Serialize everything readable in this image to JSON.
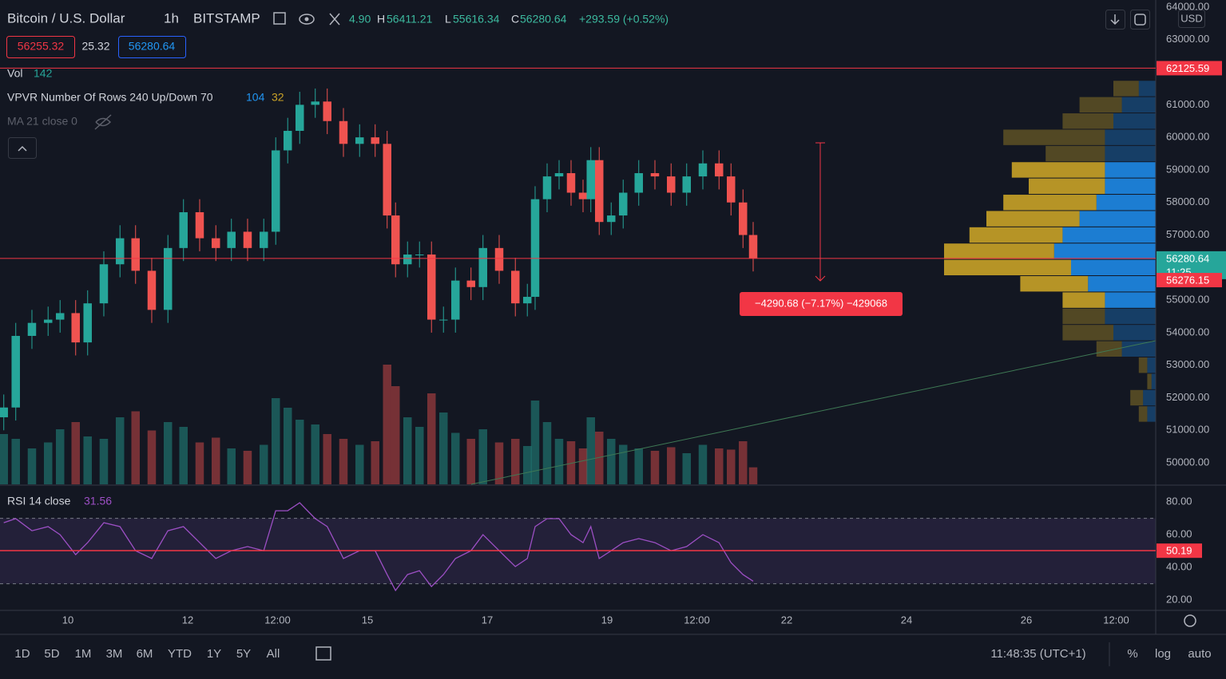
{
  "header": {
    "symbol": "Bitcoin / U.S. Dollar",
    "interval": "1h",
    "exchange": "BITSTAMP",
    "open_fragment": "4.90",
    "ohlc_labels": [
      "H",
      "L",
      "C"
    ],
    "high": 56411.21,
    "low": 55616.34,
    "close": 56280.64,
    "change": "+293.59 (+0.52%)",
    "sell": 56255.32,
    "spread": 25.32,
    "buy": 56280.64,
    "currency": "USD"
  },
  "legends": {
    "vol": "Vol",
    "vol_value": 142,
    "vpvr": "VPVR Number Of Rows 240 Up/Down 70",
    "vpvr_up": 104,
    "vpvr_down": 32,
    "ma": "MA 21 close 0",
    "rsi": "RSI 14 close",
    "rsi_value": 31.56
  },
  "measure": "−4290.68 (−7.17%) −429068",
  "toolbar": {
    "ranges": [
      "1D",
      "5D",
      "1M",
      "3M",
      "6M",
      "YTD",
      "1Y",
      "5Y",
      "All"
    ],
    "clock": "11:48:35 (UTC+1)",
    "percent": "%",
    "log": "log",
    "auto": "auto"
  },
  "chart_data": [
    {
      "type": "candlestick",
      "x": [
        8.93,
        9.13,
        9.4,
        9.67,
        9.87,
        10.13,
        10.33,
        10.6,
        10.87,
        11.13,
        11.4,
        11.67,
        11.93,
        12.2,
        12.47,
        12.73,
        13.0,
        13.27,
        13.47,
        13.67,
        13.87,
        14.13,
        14.33,
        14.6,
        14.87,
        15.13,
        15.33,
        15.47,
        15.67,
        15.87,
        16.07,
        16.27,
        16.47,
        16.73,
        16.93,
        17.2,
        17.47,
        17.67,
        17.8,
        18.0,
        18.2,
        18.4,
        18.6,
        18.73,
        18.87,
        19.07,
        19.27,
        19.53,
        19.8,
        20.07,
        20.33,
        20.6,
        20.87,
        21.07,
        21.27,
        21.44
      ],
      "open": [
        51400,
        51700,
        53900,
        54300,
        54400,
        54600,
        53700,
        54900,
        56100,
        56900,
        55900,
        54700,
        56600,
        57700,
        56900,
        56600,
        57100,
        56600,
        57100,
        59600,
        60200,
        61000,
        61100,
        60500,
        59800,
        60000,
        59800,
        57600,
        56100,
        56400,
        56400,
        54400,
        54400,
        55600,
        55400,
        56600,
        55900,
        54900,
        55100,
        58100,
        58800,
        58900,
        58300,
        58100,
        59300,
        57400,
        57600,
        58300,
        58900,
        58800,
        58300,
        58800,
        59200,
        58800,
        58000,
        57000
      ],
      "high": [
        52100,
        54300,
        54700,
        54800,
        55000,
        55000,
        55300,
        56500,
        57300,
        57300,
        56300,
        57000,
        58100,
        58100,
        57300,
        57500,
        57500,
        57500,
        60000,
        60600,
        61400,
        61500,
        61500,
        60900,
        60400,
        60400,
        60200,
        58000,
        56800,
        56800,
        56800,
        54800,
        56000,
        56000,
        57000,
        57000,
        56300,
        55500,
        58500,
        59200,
        59300,
        59300,
        58700,
        59700,
        59700,
        58000,
        58700,
        59300,
        59300,
        59200,
        59200,
        59600,
        59600,
        59200,
        58400,
        57400
      ],
      "low": [
        51000,
        51300,
        53500,
        53900,
        54000,
        53300,
        53300,
        54500,
        55700,
        55500,
        54300,
        54300,
        56200,
        56500,
        56200,
        56200,
        56200,
        56200,
        56700,
        59200,
        59800,
        60600,
        60100,
        59400,
        59400,
        59400,
        57200,
        55700,
        55700,
        56000,
        54000,
        54000,
        54000,
        55000,
        55000,
        55500,
        54500,
        54500,
        54700,
        57700,
        58400,
        57900,
        57700,
        57700,
        57000,
        57000,
        57200,
        57900,
        58400,
        57900,
        57900,
        58400,
        58400,
        57600,
        56600,
        55880
      ],
      "close": [
        51700,
        53900,
        54300,
        54400,
        54600,
        53700,
        54900,
        56100,
        56900,
        55900,
        54700,
        56600,
        57700,
        56900,
        56600,
        57100,
        56600,
        57100,
        59600,
        60200,
        61000,
        61100,
        60500,
        59800,
        60000,
        59800,
        57600,
        56100,
        56400,
        56400,
        54400,
        54400,
        55600,
        55400,
        56600,
        55900,
        54900,
        55100,
        58100,
        58800,
        58900,
        58300,
        58100,
        59300,
        57400,
        57600,
        58300,
        58900,
        58800,
        58300,
        58800,
        59200,
        58800,
        58000,
        57000,
        56280
      ],
      "volume": [
        420,
        380,
        300,
        350,
        460,
        520,
        400,
        380,
        560,
        610,
        450,
        520,
        480,
        350,
        390,
        300,
        280,
        330,
        720,
        640,
        540,
        500,
        420,
        380,
        330,
        360,
        1000,
        820,
        560,
        480,
        760,
        600,
        430,
        380,
        460,
        350,
        380,
        320,
        700,
        520,
        380,
        360,
        300,
        560,
        440,
        380,
        330,
        300,
        280,
        310,
        260,
        330,
        300,
        290,
        360,
        142
      ],
      "up_color": "#26a69a",
      "down_color": "#ef5350",
      "xlim": [
        8.867,
        28.16
      ],
      "xticks": [
        10,
        12,
        {
          "value": 13.5,
          "label": "12:00"
        },
        15,
        17,
        19,
        {
          "value": 20.5,
          "label": "12:00"
        },
        22,
        24,
        26,
        {
          "value": 27.5,
          "label": "12:00"
        }
      ],
      "ylim": [
        49340,
        64220
      ],
      "yticks": [
        {
          "value": 50000,
          "label": "50000.00"
        },
        {
          "value": 51000,
          "label": "51000.00"
        },
        {
          "value": 52000,
          "label": "52000.00"
        },
        {
          "value": 53000,
          "label": "53000.00"
        },
        {
          "value": 54000,
          "label": "54000.00"
        },
        {
          "value": 55000,
          "label": "55000.00"
        },
        {
          "value": 57000,
          "label": "57000.00"
        },
        {
          "value": 58000,
          "label": "58000.00"
        },
        {
          "value": 59000,
          "label": "59000.00"
        },
        {
          "value": 60000,
          "label": "60000.00"
        },
        {
          "value": 61000,
          "label": "61000.00"
        },
        {
          "value": 63000,
          "label": "63000.00"
        },
        {
          "value": 64000,
          "label": "64000.00"
        }
      ],
      "hline": {
        "value": 62125.59,
        "color": "#f23645"
      },
      "last_price": {
        "value": 56280.64,
        "countdown": "11:25",
        "color": "#26a69a"
      },
      "bid_price": {
        "value": 56276.15,
        "color": "#f23645"
      },
      "volume_profile": {
        "value_area": [
          54700,
          59300
        ],
        "up_color": "#1e88e5",
        "down_color": "#c9a227",
        "rows": [
          {
            "price": 61500,
            "up": 20,
            "down": 30
          },
          {
            "price": 61000,
            "up": 40,
            "down": 50
          },
          {
            "price": 60500,
            "up": 50,
            "down": 60
          },
          {
            "price": 60000,
            "up": 60,
            "down": 120
          },
          {
            "price": 59500,
            "up": 60,
            "down": 70
          },
          {
            "price": 59000,
            "up": 60,
            "down": 110
          },
          {
            "price": 58500,
            "up": 60,
            "down": 90
          },
          {
            "price": 58000,
            "up": 70,
            "down": 110
          },
          {
            "price": 57500,
            "up": 90,
            "down": 110
          },
          {
            "price": 57000,
            "up": 110,
            "down": 110
          },
          {
            "price": 56500,
            "up": 120,
            "down": 130
          },
          {
            "price": 56000,
            "up": 100,
            "down": 150
          },
          {
            "price": 55500,
            "up": 80,
            "down": 80
          },
          {
            "price": 55000,
            "up": 60,
            "down": 50
          },
          {
            "price": 54500,
            "up": 60,
            "down": 50
          },
          {
            "price": 54000,
            "up": 50,
            "down": 60
          },
          {
            "price": 53500,
            "up": 40,
            "down": 30
          },
          {
            "price": 53000,
            "up": 10,
            "down": 10
          },
          {
            "price": 52500,
            "up": 5,
            "down": 5
          },
          {
            "price": 52000,
            "up": 15,
            "down": 15
          },
          {
            "price": 51500,
            "up": 10,
            "down": 10
          }
        ]
      }
    },
    {
      "type": "line",
      "x": [
        8.93,
        9.13,
        9.4,
        9.67,
        9.87,
        10.13,
        10.33,
        10.6,
        10.87,
        11.13,
        11.4,
        11.67,
        11.93,
        12.2,
        12.47,
        12.73,
        13.0,
        13.27,
        13.47,
        13.67,
        13.87,
        14.13,
        14.33,
        14.6,
        14.87,
        15.13,
        15.33,
        15.47,
        15.67,
        15.87,
        16.07,
        16.27,
        16.47,
        16.73,
        16.93,
        17.2,
        17.47,
        17.67,
        17.8,
        18.0,
        18.2,
        18.4,
        18.6,
        18.73,
        18.87,
        19.07,
        19.27,
        19.53,
        19.8,
        20.07,
        20.33,
        20.6,
        20.87,
        21.07,
        21.27,
        21.44
      ],
      "values": [
        67.3,
        69.8,
        62.4,
        64.9,
        60,
        47.8,
        55.1,
        67.3,
        64.9,
        50.2,
        45.4,
        62.4,
        64.9,
        55.1,
        45.4,
        50.2,
        52.7,
        50.2,
        74.6,
        74.6,
        79.5,
        69.8,
        64.9,
        45.4,
        50.2,
        50.2,
        35.6,
        25.9,
        35.6,
        38,
        28.3,
        35.6,
        45.4,
        50.2,
        60,
        50.2,
        40.5,
        45.4,
        64.9,
        69.8,
        69.8,
        60,
        55.1,
        64.9,
        45.4,
        50.2,
        55.1,
        57.6,
        55.1,
        50.2,
        52.7,
        60,
        55.1,
        42.9,
        35.6,
        31.56
      ],
      "color": "#9c4fc4",
      "ylim": [
        13.7,
        89.3
      ],
      "yticks": [
        {
          "value": 20,
          "label": "20.00"
        },
        {
          "value": 40,
          "label": "40.00"
        },
        {
          "value": 60,
          "label": "60.00"
        },
        {
          "value": 80,
          "label": "80.00"
        }
      ],
      "band": [
        30,
        70
      ],
      "hline": {
        "value": 50.19,
        "color": "#f23645"
      }
    }
  ]
}
